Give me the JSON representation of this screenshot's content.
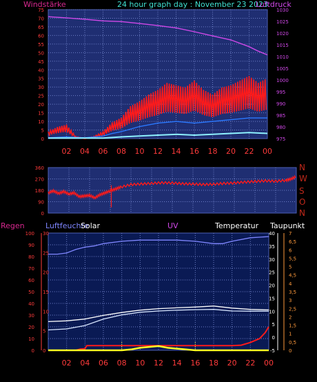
{
  "chart_data": [
    {
      "type": "line",
      "title": "24 hour graph day : November 23 2023",
      "left_label": "Windstärke",
      "right_label": "Luftdruck",
      "x_ticks": [
        "02",
        "04",
        "06",
        "08",
        "10",
        "12",
        "14",
        "16",
        "18",
        "20",
        "22",
        "00"
      ],
      "y_left_ticks": [
        0,
        5,
        10,
        15,
        20,
        25,
        30,
        35,
        40,
        45,
        50,
        55,
        60,
        65,
        70,
        75
      ],
      "y_right_ticks": [
        975,
        980,
        985,
        990,
        995,
        1000,
        1005,
        1010,
        1015,
        1020,
        1025,
        1030
      ],
      "ylim_left": [
        0,
        75
      ],
      "ylim_right": [
        975,
        1030
      ],
      "grid": true,
      "series": [
        {
          "role": "pressure",
          "axis": "right",
          "color": "#d048e8",
          "x": [
            0,
            2,
            4,
            6,
            8,
            10,
            12,
            14,
            16,
            18,
            20,
            22,
            23,
            24
          ],
          "values": [
            1027,
            1026.5,
            1025.9,
            1025.2,
            1024.9,
            1024.1,
            1023.2,
            1022.2,
            1020.6,
            1018.8,
            1017.1,
            1014.2,
            1012.3,
            1010.7
          ]
        },
        {
          "role": "gust",
          "axis": "left",
          "color": "#ff1a1a",
          "x": [
            0,
            1,
            2,
            3,
            4,
            5,
            6,
            7,
            8,
            9,
            10,
            11,
            12,
            13,
            14,
            15,
            16,
            17,
            18,
            19,
            20,
            21,
            22,
            23,
            24
          ],
          "values": [
            3,
            5,
            6,
            1,
            0,
            1,
            3,
            7,
            9,
            14,
            16,
            19,
            21,
            24,
            23,
            22,
            25,
            21,
            19,
            22,
            23,
            25,
            27,
            24,
            26
          ]
        },
        {
          "role": "wind",
          "axis": "left",
          "color": "#2a78ff",
          "x": [
            0,
            2,
            4,
            6,
            7,
            8,
            10,
            12,
            14,
            16,
            18,
            20,
            22,
            24
          ],
          "values": [
            0.5,
            1,
            0.5,
            1.5,
            3,
            4,
            7,
            9,
            10,
            9,
            10,
            11,
            12,
            12
          ]
        },
        {
          "role": "calm",
          "axis": "left",
          "color": "#8ef2ff",
          "x": [
            0,
            6,
            8,
            10,
            12,
            14,
            16,
            18,
            20,
            22,
            24
          ],
          "values": [
            0.3,
            0.3,
            1,
            1.5,
            2,
            2.5,
            2,
            2.5,
            3,
            3.5,
            3
          ]
        }
      ]
    },
    {
      "type": "line",
      "right_labels": [
        "N",
        "W",
        "S",
        "O",
        "N"
      ],
      "y_ticks": [
        0,
        90,
        180,
        270,
        360
      ],
      "ylim": [
        0,
        360
      ],
      "grid": true,
      "series": [
        {
          "role": "direction",
          "color": "#ff1a1a",
          "x": [
            0,
            0.5,
            1,
            1.5,
            2,
            2.5,
            3,
            3.5,
            4,
            4.5,
            5,
            5.5,
            6,
            6.5,
            7,
            8,
            9,
            10,
            11,
            12,
            13,
            14,
            15,
            16,
            17,
            18,
            19,
            20,
            21,
            22,
            23,
            23.5,
            24
          ],
          "values": [
            160,
            175,
            155,
            170,
            150,
            160,
            130,
            135,
            140,
            120,
            145,
            160,
            175,
            190,
            205,
            225,
            230,
            235,
            240,
            238,
            232,
            230,
            226,
            228,
            235,
            238,
            245,
            250,
            255,
            252,
            258,
            270,
            290
          ]
        }
      ]
    },
    {
      "type": "line",
      "top_labels": {
        "regen": "Regen",
        "luftfeuchte": "Luftfeuchte",
        "solar": "Solar",
        "uv": "UV",
        "temperatur": "Temperatur",
        "taupunkt": "Taupunkt"
      },
      "y_humidity_ticks": [
        0,
        10,
        20,
        30,
        40,
        50,
        60,
        70,
        80,
        90,
        100
      ],
      "y_rain_ticks": [
        0,
        5,
        10,
        15,
        20,
        25,
        30
      ],
      "y_temp_ticks": [
        -5,
        0,
        5,
        10,
        15,
        20,
        25,
        30,
        35,
        40
      ],
      "y_uv_ticks": [
        "0",
        "0,5",
        "1",
        "1,5",
        "2",
        "2,5",
        "3",
        "3,5",
        "4",
        "4,5",
        "5",
        "5,5",
        "6",
        "6,5",
        "7"
      ],
      "ylim_humidity": [
        0,
        100
      ],
      "ylim_temperature": [
        -5,
        40
      ],
      "grid": true,
      "series": [
        {
          "role": "humidity",
          "axis": "humidity",
          "color": "#7f86ff",
          "x": [
            0,
            1,
            2,
            3,
            4,
            5,
            6,
            8,
            10,
            12,
            14,
            16,
            18,
            19,
            20,
            22,
            24
          ],
          "values": [
            82,
            82,
            83,
            86,
            88,
            89,
            91,
            93,
            94,
            94,
            94,
            93,
            91,
            91,
            93,
            96,
            97
          ]
        },
        {
          "role": "temperature",
          "axis": "temperature",
          "color": "#ffffff",
          "x": [
            0,
            2,
            4,
            6,
            8,
            10,
            12,
            14,
            16,
            18,
            20,
            22,
            24
          ],
          "values": [
            6,
            6.3,
            7,
            8.4,
            9.5,
            10.4,
            11,
            11.3,
            11.6,
            12,
            11.2,
            10.7,
            10.5
          ]
        },
        {
          "role": "dewpoint",
          "axis": "temperature",
          "color": "#d8e6ff",
          "x": [
            0,
            2,
            4,
            6,
            8,
            10,
            12,
            14,
            16,
            18,
            20,
            22,
            24
          ],
          "values": [
            2.8,
            3.2,
            4.5,
            7,
            8.6,
            9.6,
            10.1,
            10.4,
            10.6,
            10.7,
            10.1,
            10,
            10
          ]
        },
        {
          "role": "rain",
          "axis": "rain",
          "color": "#ff1a1a",
          "x": [
            0,
            3,
            3.5,
            4,
            4.2,
            6,
            10,
            14,
            18,
            20,
            21,
            22,
            23,
            23.6,
            24
          ],
          "values": [
            0,
            0,
            0.3,
            0.4,
            1.2,
            1.2,
            1.2,
            1.2,
            1.2,
            1.2,
            1.3,
            2,
            3,
            4.5,
            6
          ]
        },
        {
          "role": "solar",
          "axis": "uv",
          "color": "#ffff22",
          "x": [
            0,
            8,
            9,
            10,
            11,
            12,
            13,
            14,
            15,
            16,
            24
          ],
          "values": [
            0,
            0,
            0.05,
            0.15,
            0.2,
            0.25,
            0.15,
            0.1,
            0.05,
            0,
            0
          ]
        }
      ]
    }
  ],
  "colors": {
    "plot_bg": "#1f2e72",
    "grid": "#6d7fc8",
    "frame": "#4c5fb6",
    "tick_text": "#ff3b3b",
    "title": "#40e0d0",
    "left_label": "#d8288f",
    "right_label": "#d048e8",
    "dir_axis": "#c0281a",
    "panel_bg": "#0a1a54"
  }
}
